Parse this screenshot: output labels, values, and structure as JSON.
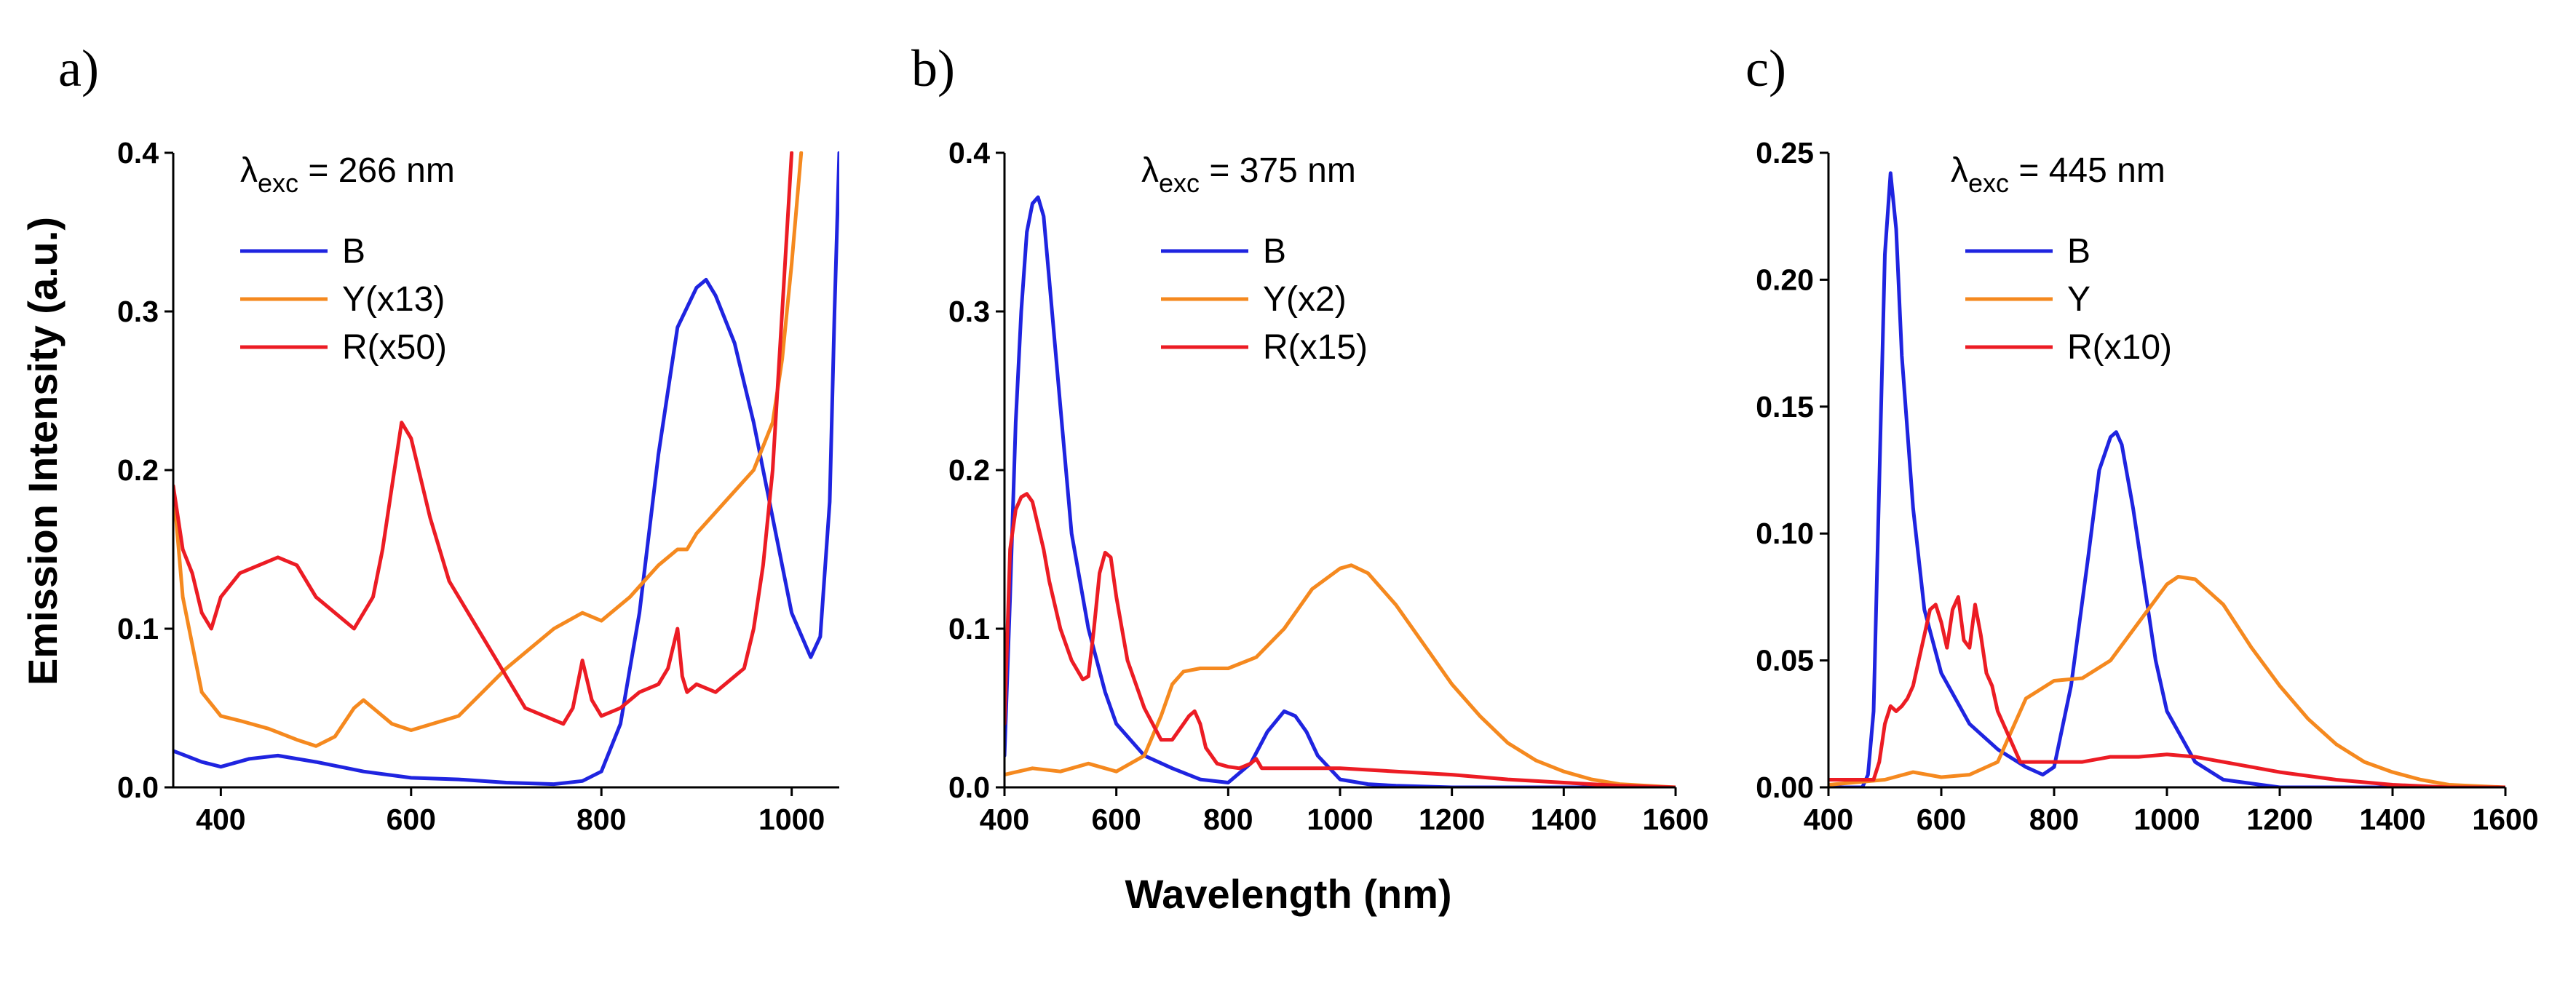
{
  "colors": {
    "B": "#1f24e0",
    "Y": "#f5891f",
    "R": "#ec1c24"
  },
  "shared": {
    "ylabel": "Emission Intensity (a.u.)",
    "xlabel": "Wavelength  (nm)"
  },
  "chart_data": [
    {
      "type": "line",
      "panel": "a)",
      "excitation": {
        "lambda": "λ",
        "sub": "exc",
        "value": " = 266 nm"
      },
      "xlim": [
        350,
        1050
      ],
      "ylim": [
        0,
        0.4
      ],
      "xticks": [
        400,
        600,
        800,
        1000
      ],
      "yticks": [
        0.0,
        0.1,
        0.2,
        0.3,
        0.4
      ],
      "ytick_labels": [
        "0.0",
        "0.1",
        "0.2",
        "0.3",
        "0.4"
      ],
      "legend": [
        "B",
        "Y(x13)",
        "R(x50)"
      ],
      "series": [
        {
          "name": "B",
          "color_key": "B",
          "x": [
            350,
            380,
            400,
            430,
            460,
            500,
            550,
            600,
            650,
            700,
            750,
            780,
            800,
            820,
            840,
            860,
            880,
            900,
            910,
            920,
            940,
            960,
            980,
            1000,
            1020,
            1030,
            1040,
            1045,
            1050
          ],
          "y": [
            0.023,
            0.016,
            0.013,
            0.018,
            0.02,
            0.016,
            0.01,
            0.006,
            0.005,
            0.003,
            0.002,
            0.004,
            0.01,
            0.04,
            0.11,
            0.21,
            0.29,
            0.315,
            0.32,
            0.31,
            0.28,
            0.23,
            0.17,
            0.11,
            0.082,
            0.095,
            0.18,
            0.3,
            0.4
          ]
        },
        {
          "name": "Y(x13)",
          "color_key": "Y",
          "x": [
            350,
            360,
            380,
            400,
            420,
            450,
            480,
            500,
            520,
            540,
            550,
            560,
            580,
            600,
            650,
            700,
            750,
            780,
            800,
            830,
            860,
            880,
            890,
            900,
            930,
            960,
            980,
            990,
            1000,
            1010
          ],
          "y": [
            0.19,
            0.12,
            0.06,
            0.045,
            0.042,
            0.037,
            0.03,
            0.026,
            0.032,
            0.05,
            0.055,
            0.05,
            0.04,
            0.036,
            0.045,
            0.075,
            0.1,
            0.11,
            0.105,
            0.12,
            0.14,
            0.15,
            0.15,
            0.16,
            0.18,
            0.2,
            0.23,
            0.27,
            0.33,
            0.4
          ]
        },
        {
          "name": "R(x50)",
          "color_key": "R",
          "x": [
            350,
            360,
            370,
            380,
            390,
            400,
            420,
            440,
            460,
            480,
            500,
            520,
            540,
            560,
            570,
            580,
            590,
            600,
            620,
            640,
            660,
            680,
            700,
            720,
            740,
            760,
            770,
            780,
            790,
            800,
            820,
            840,
            860,
            870,
            880,
            885,
            890,
            900,
            920,
            940,
            950,
            960,
            970,
            980,
            990,
            1000
          ],
          "y": [
            0.19,
            0.15,
            0.135,
            0.11,
            0.1,
            0.12,
            0.135,
            0.14,
            0.145,
            0.14,
            0.12,
            0.11,
            0.1,
            0.12,
            0.15,
            0.19,
            0.23,
            0.22,
            0.17,
            0.13,
            0.11,
            0.09,
            0.07,
            0.05,
            0.045,
            0.04,
            0.05,
            0.08,
            0.055,
            0.045,
            0.05,
            0.06,
            0.065,
            0.075,
            0.1,
            0.07,
            0.06,
            0.065,
            0.06,
            0.07,
            0.075,
            0.1,
            0.14,
            0.2,
            0.3,
            0.4
          ]
        }
      ]
    },
    {
      "type": "line",
      "panel": "b)",
      "excitation": {
        "lambda": "λ",
        "sub": "exc",
        "value": " = 375 nm"
      },
      "xlim": [
        400,
        1600
      ],
      "ylim": [
        0,
        0.4
      ],
      "xticks": [
        400,
        600,
        800,
        1000,
        1200,
        1400,
        1600
      ],
      "yticks": [
        0.0,
        0.1,
        0.2,
        0.3,
        0.4
      ],
      "ytick_labels": [
        "0.0",
        "0.1",
        "0.2",
        "0.3",
        "0.4"
      ],
      "legend": [
        "B",
        "Y(x2)",
        "R(x15)"
      ],
      "series": [
        {
          "name": "B",
          "color_key": "B",
          "x": [
            400,
            410,
            420,
            430,
            440,
            450,
            460,
            470,
            480,
            500,
            520,
            550,
            580,
            600,
            650,
            700,
            750,
            800,
            840,
            870,
            900,
            920,
            940,
            960,
            1000,
            1050,
            1100,
            1200,
            1300,
            1600
          ],
          "y": [
            0.02,
            0.12,
            0.23,
            0.3,
            0.35,
            0.368,
            0.372,
            0.36,
            0.32,
            0.24,
            0.16,
            0.1,
            0.06,
            0.04,
            0.02,
            0.012,
            0.005,
            0.003,
            0.015,
            0.035,
            0.048,
            0.045,
            0.035,
            0.02,
            0.005,
            0.002,
            0.001,
            0.0,
            0.0,
            0.0
          ]
        },
        {
          "name": "Y(x2)",
          "color_key": "Y",
          "x": [
            400,
            450,
            500,
            550,
            600,
            650,
            680,
            700,
            720,
            750,
            800,
            850,
            900,
            950,
            1000,
            1020,
            1050,
            1100,
            1150,
            1200,
            1250,
            1300,
            1350,
            1400,
            1450,
            1500,
            1600
          ],
          "y": [
            0.008,
            0.012,
            0.01,
            0.015,
            0.01,
            0.02,
            0.045,
            0.065,
            0.073,
            0.075,
            0.075,
            0.082,
            0.1,
            0.125,
            0.138,
            0.14,
            0.135,
            0.115,
            0.09,
            0.065,
            0.045,
            0.028,
            0.017,
            0.01,
            0.005,
            0.002,
            0.0
          ]
        },
        {
          "name": "R(x15)",
          "color_key": "R",
          "x": [
            400,
            410,
            420,
            430,
            440,
            450,
            460,
            470,
            480,
            500,
            520,
            540,
            550,
            560,
            570,
            580,
            590,
            600,
            620,
            650,
            680,
            700,
            720,
            730,
            740,
            750,
            760,
            780,
            800,
            820,
            840,
            850,
            860,
            880,
            900,
            1000,
            1100,
            1200,
            1300,
            1400,
            1500,
            1600
          ],
          "y": [
            0.04,
            0.15,
            0.175,
            0.183,
            0.185,
            0.18,
            0.165,
            0.15,
            0.13,
            0.1,
            0.08,
            0.068,
            0.07,
            0.1,
            0.135,
            0.148,
            0.145,
            0.12,
            0.08,
            0.05,
            0.03,
            0.03,
            0.04,
            0.045,
            0.048,
            0.04,
            0.025,
            0.015,
            0.013,
            0.012,
            0.015,
            0.018,
            0.012,
            0.012,
            0.012,
            0.012,
            0.01,
            0.008,
            0.005,
            0.003,
            0.001,
            0.0
          ]
        }
      ]
    },
    {
      "type": "line",
      "panel": "c)",
      "excitation": {
        "lambda": "λ",
        "sub": "exc",
        "value": " = 445 nm"
      },
      "xlim": [
        400,
        1600
      ],
      "ylim": [
        0,
        0.25
      ],
      "xticks": [
        400,
        600,
        800,
        1000,
        1200,
        1400,
        1600
      ],
      "yticks": [
        0.0,
        0.05,
        0.1,
        0.15,
        0.2,
        0.25
      ],
      "ytick_labels": [
        "0.00",
        "0.05",
        "0.10",
        "0.15",
        "0.20",
        "0.25"
      ],
      "legend": [
        "B",
        "Y",
        "R(x10)"
      ],
      "series": [
        {
          "name": "B",
          "color_key": "B",
          "x": [
            400,
            460,
            470,
            480,
            490,
            500,
            510,
            520,
            530,
            550,
            570,
            600,
            650,
            700,
            750,
            780,
            800,
            830,
            860,
            880,
            900,
            910,
            920,
            940,
            960,
            980,
            1000,
            1050,
            1100,
            1200,
            1300,
            1600
          ],
          "y": [
            0.0,
            0.0,
            0.005,
            0.03,
            0.12,
            0.21,
            0.242,
            0.22,
            0.17,
            0.11,
            0.07,
            0.045,
            0.025,
            0.015,
            0.008,
            0.005,
            0.008,
            0.04,
            0.09,
            0.125,
            0.138,
            0.14,
            0.135,
            0.11,
            0.08,
            0.05,
            0.03,
            0.01,
            0.003,
            0.0,
            0.0,
            0.0
          ]
        },
        {
          "name": "Y",
          "color_key": "Y",
          "x": [
            400,
            450,
            500,
            550,
            600,
            650,
            700,
            720,
            750,
            800,
            850,
            900,
            950,
            1000,
            1020,
            1050,
            1100,
            1150,
            1200,
            1250,
            1300,
            1350,
            1400,
            1450,
            1500,
            1600
          ],
          "y": [
            0.001,
            0.002,
            0.003,
            0.006,
            0.004,
            0.005,
            0.01,
            0.02,
            0.035,
            0.042,
            0.043,
            0.05,
            0.065,
            0.08,
            0.083,
            0.082,
            0.072,
            0.055,
            0.04,
            0.027,
            0.017,
            0.01,
            0.006,
            0.003,
            0.001,
            0.0
          ]
        },
        {
          "name": "R(x10)",
          "color_key": "R",
          "x": [
            400,
            480,
            490,
            500,
            510,
            520,
            530,
            540,
            550,
            560,
            570,
            580,
            590,
            600,
            610,
            620,
            630,
            640,
            650,
            660,
            670,
            680,
            690,
            700,
            720,
            740,
            760,
            780,
            800,
            850,
            900,
            950,
            1000,
            1050,
            1100,
            1150,
            1200,
            1300,
            1400,
            1500,
            1600
          ],
          "y": [
            0.003,
            0.003,
            0.01,
            0.025,
            0.032,
            0.03,
            0.032,
            0.035,
            0.04,
            0.05,
            0.06,
            0.07,
            0.072,
            0.065,
            0.055,
            0.07,
            0.075,
            0.058,
            0.055,
            0.072,
            0.06,
            0.045,
            0.04,
            0.03,
            0.02,
            0.01,
            0.01,
            0.01,
            0.01,
            0.01,
            0.012,
            0.012,
            0.013,
            0.012,
            0.01,
            0.008,
            0.006,
            0.003,
            0.001,
            0.0,
            0.0
          ]
        }
      ]
    }
  ]
}
